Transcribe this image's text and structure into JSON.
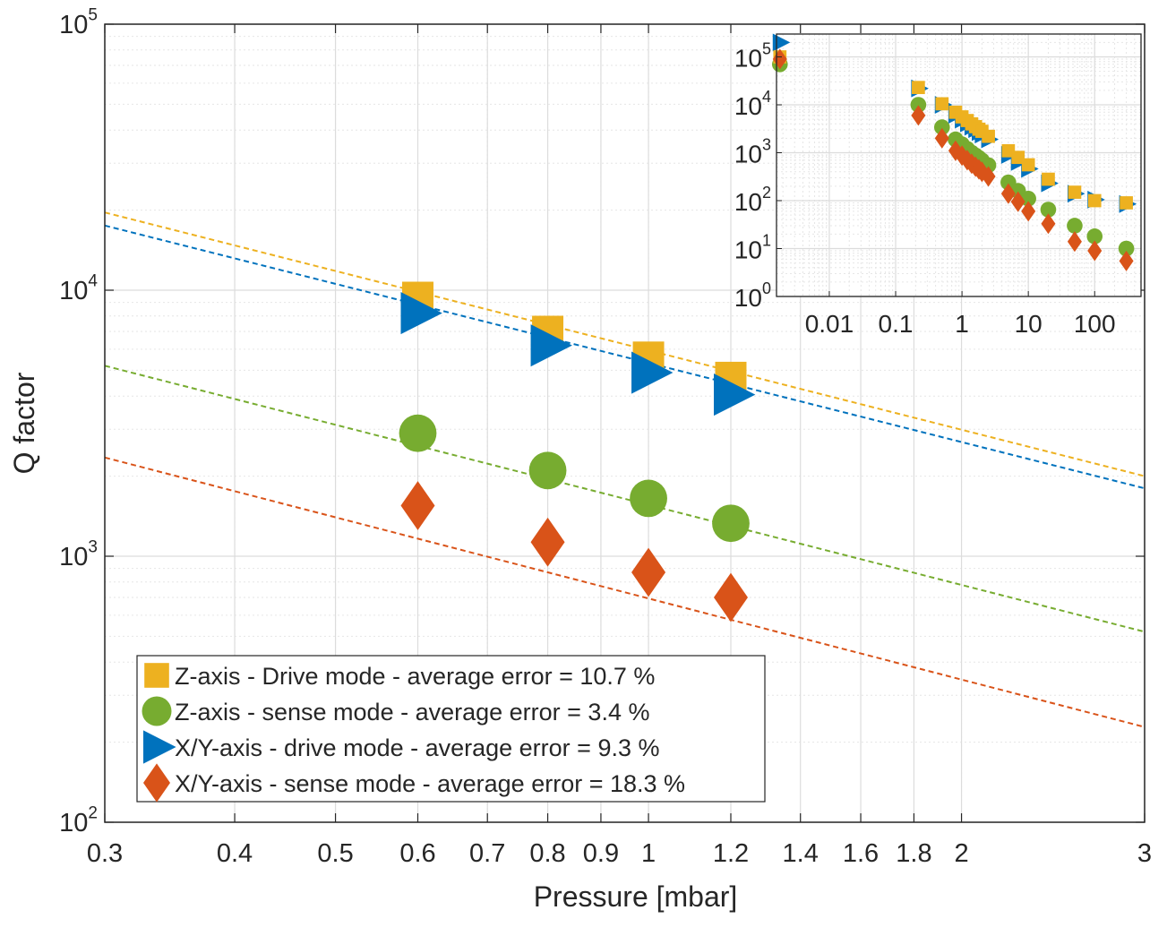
{
  "chart_data": [
    {
      "type": "scatter",
      "xlabel": "Pressure [mbar]",
      "ylabel": "Q factor",
      "xscale": "log",
      "yscale": "log",
      "xlim": [
        0.3,
        3
      ],
      "ylim": [
        100,
        100000
      ],
      "grid": true,
      "legend_position": "bottom-left",
      "x_ticks": [
        0.3,
        0.4,
        0.5,
        0.6,
        0.7,
        0.8,
        0.9,
        1,
        1.2,
        1.4,
        1.6,
        1.8,
        2,
        3
      ],
      "x_tick_labels": [
        "0.3",
        "0.4",
        "0.5",
        "0.6",
        "0.7",
        "0.8",
        "0.9",
        "1",
        "1.2",
        "1.4",
        "1.6",
        "1.8",
        "2",
        "3"
      ],
      "y_ticks": [
        100,
        1000,
        10000,
        100000
      ],
      "y_tick_base": "10",
      "y_tick_exponents": [
        "2",
        "3",
        "4",
        "5"
      ],
      "series": [
        {
          "name": "Z-axis - Drive mode - average error = 10.7 %",
          "marker": "square",
          "color": "#EDB120",
          "x": [
            0.6,
            0.8,
            1.0,
            1.2
          ],
          "y": [
            9400,
            7000,
            5600,
            4700
          ],
          "fit": {
            "x": [
              0.3,
              3
            ],
            "y": [
              19600,
              2000
            ]
          }
        },
        {
          "name": "Z-axis - sense mode - average error = 3.4 %",
          "marker": "circle",
          "color": "#77AC30",
          "x": [
            0.6,
            0.8,
            1.0,
            1.2
          ],
          "y": [
            2900,
            2100,
            1650,
            1330
          ],
          "fit": {
            "x": [
              0.3,
              3
            ],
            "y": [
              5200,
              520
            ]
          }
        },
        {
          "name": "X/Y-axis - drive mode - average error = 9.3 %",
          "marker": "triangle-right",
          "color": "#0072BD",
          "x": [
            0.6,
            0.8,
            1.0,
            1.2
          ],
          "y": [
            8200,
            6200,
            4900,
            4050
          ],
          "fit": {
            "x": [
              0.3,
              3
            ],
            "y": [
              17500,
              1800
            ]
          }
        },
        {
          "name": "X/Y-axis - sense mode - average error = 18.3 %",
          "marker": "diamond",
          "color": "#D95319",
          "x": [
            0.6,
            0.8,
            1.0,
            1.2
          ],
          "y": [
            1550,
            1130,
            870,
            700
          ],
          "fit": {
            "x": [
              0.3,
              3
            ],
            "y": [
              2350,
              228
            ]
          }
        }
      ]
    },
    {
      "type": "scatter",
      "xscale": "log",
      "yscale": "log",
      "xlim": [
        0.0016,
        500
      ],
      "ylim": [
        1,
        300000
      ],
      "grid": true,
      "x_tick_labels": [
        "0.01",
        "0.1",
        "1",
        "10",
        "100"
      ],
      "x_ticks": [
        0.01,
        0.1,
        1,
        10,
        100
      ],
      "y_ticks": [
        1,
        10,
        100,
        1000,
        10000,
        100000
      ],
      "y_tick_base": "10",
      "y_tick_exponents": [
        "0",
        "1",
        "2",
        "3",
        "4",
        "5"
      ],
      "series": [
        {
          "marker": "square",
          "color": "#EDB120",
          "x": [
            0.0018,
            0.22,
            0.5,
            0.8,
            1,
            1.2,
            1.4,
            1.6,
            1.8,
            2,
            2.5,
            5,
            7,
            10,
            20,
            50,
            100,
            300
          ],
          "y": [
            100000,
            23000,
            10500,
            7000,
            5600,
            4700,
            4000,
            3500,
            3100,
            2800,
            2200,
            1100,
            800,
            560,
            280,
            150,
            100,
            90
          ]
        },
        {
          "marker": "circle",
          "color": "#77AC30",
          "x": [
            0.0018,
            0.22,
            0.5,
            0.8,
            1,
            1.2,
            1.4,
            1.6,
            1.8,
            2,
            2.5,
            5,
            7,
            10,
            20,
            50,
            100,
            300
          ],
          "y": [
            70000,
            10000,
            3400,
            1900,
            1500,
            1200,
            1000,
            880,
            780,
            690,
            550,
            240,
            160,
            110,
            65,
            30,
            18,
            10
          ]
        },
        {
          "marker": "triangle-right",
          "color": "#0072BD",
          "x": [
            0.0018,
            0.22,
            0.5,
            0.8,
            1,
            1.2,
            1.4,
            1.6,
            1.8,
            2,
            2.5,
            5,
            7,
            10,
            20,
            50,
            100,
            300
          ],
          "y": [
            200000,
            22000,
            10000,
            6200,
            4900,
            4100,
            3500,
            3100,
            2700,
            2400,
            1900,
            900,
            640,
            460,
            230,
            140,
            105,
            85
          ]
        },
        {
          "marker": "diamond",
          "color": "#D95319",
          "x": [
            0.0018,
            0.22,
            0.5,
            0.8,
            1,
            1.2,
            1.4,
            1.6,
            1.8,
            2,
            2.5,
            5,
            7,
            10,
            20,
            50,
            100,
            300
          ],
          "y": [
            90000,
            6000,
            2000,
            1100,
            870,
            700,
            590,
            510,
            450,
            400,
            320,
            140,
            95,
            60,
            33,
            14,
            9,
            5.5
          ]
        }
      ]
    }
  ]
}
